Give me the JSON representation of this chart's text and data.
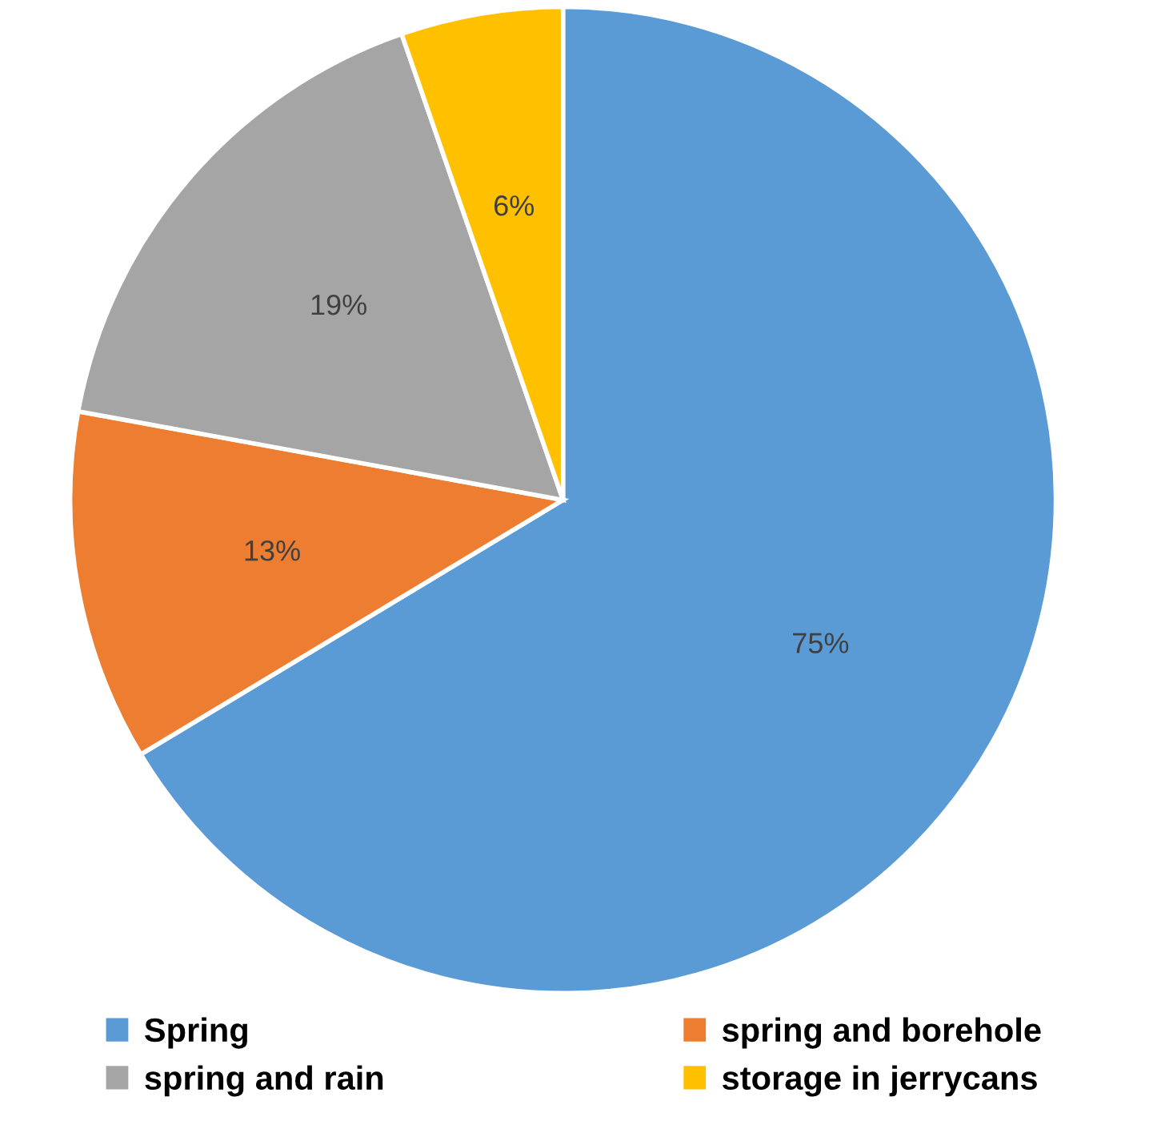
{
  "chart_data": {
    "type": "pie",
    "categories": [
      "Spring",
      "spring and borehole",
      "spring and rain",
      "storage in jerrycans"
    ],
    "values": [
      75,
      13,
      19,
      6
    ],
    "colors": [
      "#5b9bd5",
      "#ed7d31",
      "#a5a5a5",
      "#ffc000"
    ],
    "value_labels": [
      "75%",
      "13%",
      "19%",
      "6%"
    ],
    "legend": "bottom"
  }
}
